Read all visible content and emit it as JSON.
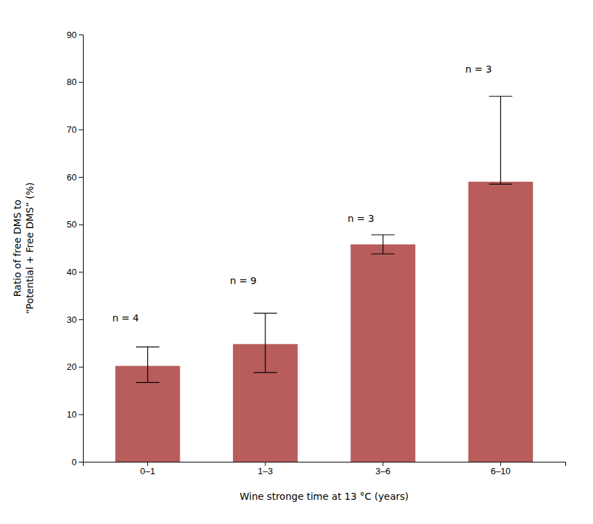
{
  "chart_data": {
    "type": "bar",
    "categories": [
      "0–1",
      "1–3",
      "3–6",
      "6–10"
    ],
    "values": [
      20.2,
      24.8,
      45.8,
      59.0
    ],
    "errors_upper": [
      4.0,
      6.5,
      2.0,
      18.0
    ],
    "errors_lower": [
      3.5,
      6.0,
      2.0,
      0.5
    ],
    "color": "#b85c5c",
    "annotations": [
      {
        "text": "n = 4",
        "y": 29.5
      },
      {
        "text": "n = 9",
        "y": 37.5
      },
      {
        "text": "n = 3",
        "y": 50.5
      },
      {
        "text": "n = 3",
        "y": 82.0
      }
    ],
    "xlabel": "Wine stronge time at 13 °C (years)",
    "ylabel": "Ratio of free DMS to\n“Potential + Free DMS” (%)",
    "ylim": [
      0,
      90
    ],
    "yticks": [
      0,
      10,
      20,
      30,
      40,
      50,
      60,
      70,
      80,
      90
    ],
    "grid": false
  }
}
